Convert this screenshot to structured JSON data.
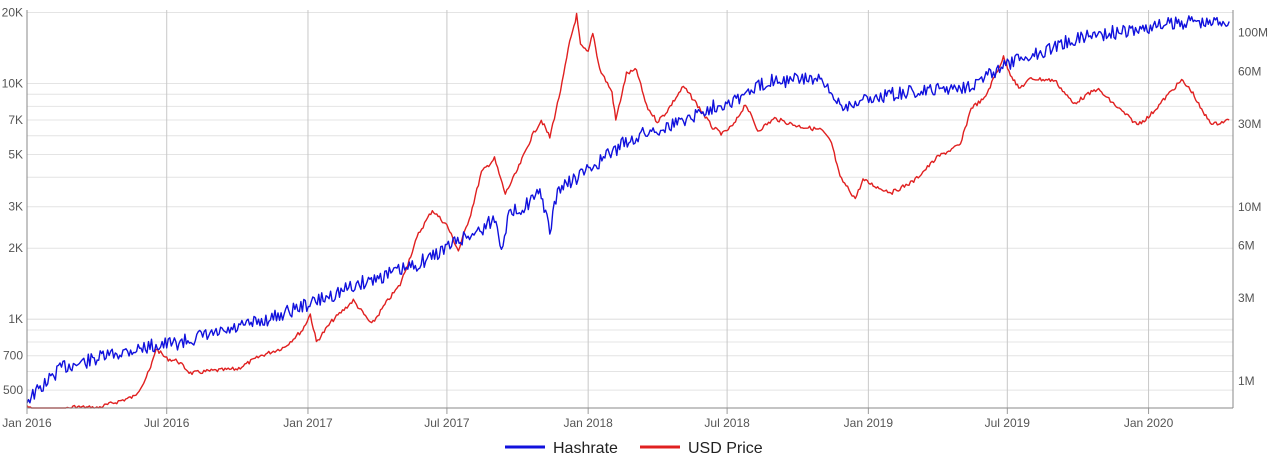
{
  "chart_data": {
    "type": "line",
    "title": "",
    "x_ticks": [
      "Jan 2016",
      "Jul 2016",
      "Jan 2017",
      "Jul 2017",
      "Jan 2018",
      "Jul 2018",
      "Jan 2019",
      "Jul 2019",
      "Jan 2020"
    ],
    "xlim": [
      "2016-01-01",
      "2020-04-20"
    ],
    "y_left": {
      "scale": "log",
      "lim": [
        420,
        20500
      ],
      "tick_labels": [
        "500",
        "700",
        "1K",
        "2K",
        "3K",
        "5K",
        "7K",
        "10K",
        "20K"
      ],
      "tick_values": [
        500,
        700,
        1000,
        2000,
        3000,
        5000,
        7000,
        10000,
        20000
      ]
    },
    "y_right": {
      "scale": "log",
      "lim": [
        700000,
        135000000
      ],
      "tick_labels": [
        "1M",
        "3M",
        "6M",
        "10M",
        "30M",
        "60M",
        "100M"
      ],
      "tick_values": [
        1000000,
        3000000,
        6000000,
        10000000,
        30000000,
        60000000,
        100000000
      ]
    },
    "grid": true,
    "legend": "bottom",
    "series": [
      {
        "name": "USD Price",
        "axis": "left",
        "color": "#e02020",
        "points": [
          [
            "2016-01-01",
            430
          ],
          [
            "2016-01-15",
            390
          ],
          [
            "2016-02-01",
            375
          ],
          [
            "2016-02-15",
            410
          ],
          [
            "2016-03-01",
            425
          ],
          [
            "2016-04-01",
            420
          ],
          [
            "2016-05-01",
            450
          ],
          [
            "2016-05-20",
            470
          ],
          [
            "2016-06-01",
            540
          ],
          [
            "2016-06-10",
            620
          ],
          [
            "2016-06-17",
            750
          ],
          [
            "2016-07-01",
            680
          ],
          [
            "2016-07-15",
            665
          ],
          [
            "2016-08-01",
            590
          ],
          [
            "2016-09-01",
            605
          ],
          [
            "2016-10-01",
            615
          ],
          [
            "2016-11-01",
            700
          ],
          [
            "2016-12-01",
            760
          ],
          [
            "2016-12-25",
            900
          ],
          [
            "2017-01-04",
            1050
          ],
          [
            "2017-01-12",
            800
          ],
          [
            "2017-02-01",
            980
          ],
          [
            "2017-03-01",
            1200
          ],
          [
            "2017-03-25",
            950
          ],
          [
            "2017-04-15",
            1200
          ],
          [
            "2017-05-01",
            1400
          ],
          [
            "2017-05-25",
            2300
          ],
          [
            "2017-06-12",
            2900
          ],
          [
            "2017-07-01",
            2500
          ],
          [
            "2017-07-16",
            1950
          ],
          [
            "2017-08-01",
            2800
          ],
          [
            "2017-08-15",
            4200
          ],
          [
            "2017-09-01",
            4800
          ],
          [
            "2017-09-15",
            3400
          ],
          [
            "2017-10-01",
            4300
          ],
          [
            "2017-10-20",
            6000
          ],
          [
            "2017-11-01",
            7000
          ],
          [
            "2017-11-12",
            5900
          ],
          [
            "2017-11-28",
            10000
          ],
          [
            "2017-12-08",
            15000
          ],
          [
            "2017-12-17",
            19500
          ],
          [
            "2017-12-22",
            14500
          ],
          [
            "2018-01-01",
            13500
          ],
          [
            "2018-01-07",
            16500
          ],
          [
            "2018-01-16",
            11500
          ],
          [
            "2018-02-01",
            9200
          ],
          [
            "2018-02-06",
            7000
          ],
          [
            "2018-02-20",
            11000
          ],
          [
            "2018-03-05",
            11400
          ],
          [
            "2018-03-18",
            8000
          ],
          [
            "2018-04-01",
            6900
          ],
          [
            "2018-04-12",
            7500
          ],
          [
            "2018-05-05",
            9700
          ],
          [
            "2018-05-20",
            8400
          ],
          [
            "2018-06-12",
            6500
          ],
          [
            "2018-06-25",
            6100
          ],
          [
            "2018-07-10",
            6700
          ],
          [
            "2018-07-25",
            8200
          ],
          [
            "2018-08-10",
            6300
          ],
          [
            "2018-09-01",
            7100
          ],
          [
            "2018-10-01",
            6600
          ],
          [
            "2018-11-01",
            6350
          ],
          [
            "2018-11-14",
            5600
          ],
          [
            "2018-11-25",
            4000
          ],
          [
            "2018-12-15",
            3250
          ],
          [
            "2018-12-25",
            3900
          ],
          [
            "2019-01-15",
            3600
          ],
          [
            "2019-02-01",
            3450
          ],
          [
            "2019-03-01",
            3850
          ],
          [
            "2019-04-02",
            4900
          ],
          [
            "2019-05-01",
            5500
          ],
          [
            "2019-05-15",
            7900
          ],
          [
            "2019-06-01",
            8600
          ],
          [
            "2019-06-26",
            12900
          ],
          [
            "2019-07-05",
            11000
          ],
          [
            "2019-07-16",
            9500
          ],
          [
            "2019-08-01",
            10500
          ],
          [
            "2019-09-01",
            10300
          ],
          [
            "2019-09-25",
            8200
          ],
          [
            "2019-10-26",
            9500
          ],
          [
            "2019-11-20",
            8000
          ],
          [
            "2019-12-17",
            6700
          ],
          [
            "2020-01-01",
            7200
          ],
          [
            "2020-02-01",
            9400
          ],
          [
            "2020-02-13",
            10300
          ],
          [
            "2020-02-26",
            9300
          ],
          [
            "2020-03-12",
            7500
          ],
          [
            "2020-03-25",
            6700
          ],
          [
            "2020-04-15",
            7000
          ]
        ]
      },
      {
        "name": "Hashrate",
        "axis": "right",
        "color": "#1111dd",
        "points": [
          [
            "2016-01-01",
            780000
          ],
          [
            "2016-01-20",
            920000
          ],
          [
            "2016-02-15",
            1200000
          ],
          [
            "2016-03-15",
            1280000
          ],
          [
            "2016-04-15",
            1400000
          ],
          [
            "2016-05-15",
            1500000
          ],
          [
            "2016-06-15",
            1600000
          ],
          [
            "2016-07-15",
            1650000
          ],
          [
            "2016-08-15",
            1800000
          ],
          [
            "2016-09-15",
            1900000
          ],
          [
            "2016-10-15",
            2100000
          ],
          [
            "2016-11-15",
            2300000
          ],
          [
            "2016-12-15",
            2600000
          ],
          [
            "2017-01-15",
            2900000
          ],
          [
            "2017-02-15",
            3300000
          ],
          [
            "2017-03-15",
            3700000
          ],
          [
            "2017-04-15",
            4100000
          ],
          [
            "2017-05-15",
            4500000
          ],
          [
            "2017-06-15",
            5300000
          ],
          [
            "2017-07-15",
            6400000
          ],
          [
            "2017-08-15",
            7400000
          ],
          [
            "2017-09-01",
            8600000
          ],
          [
            "2017-09-10",
            6000000
          ],
          [
            "2017-09-20",
            9000000
          ],
          [
            "2017-10-15",
            10500000
          ],
          [
            "2017-11-01",
            12000000
          ],
          [
            "2017-11-12",
            7000000
          ],
          [
            "2017-11-22",
            12500000
          ],
          [
            "2017-12-15",
            14500000
          ],
          [
            "2018-01-15",
            18000000
          ],
          [
            "2018-02-15",
            23000000
          ],
          [
            "2018-03-15",
            26500000
          ],
          [
            "2018-04-15",
            29000000
          ],
          [
            "2018-05-15",
            33000000
          ],
          [
            "2018-06-15",
            38000000
          ],
          [
            "2018-07-15",
            42000000
          ],
          [
            "2018-08-15",
            50000000
          ],
          [
            "2018-09-01",
            55000000
          ],
          [
            "2018-09-15",
            53000000
          ],
          [
            "2018-10-15",
            55000000
          ],
          [
            "2018-11-01",
            52000000
          ],
          [
            "2018-11-15",
            43000000
          ],
          [
            "2018-12-01",
            38000000
          ],
          [
            "2018-12-15",
            40000000
          ],
          [
            "2019-01-15",
            43000000
          ],
          [
            "2019-02-15",
            45000000
          ],
          [
            "2019-03-15",
            46000000
          ],
          [
            "2019-04-15",
            48000000
          ],
          [
            "2019-05-15",
            50000000
          ],
          [
            "2019-06-15",
            60000000
          ],
          [
            "2019-07-15",
            70000000
          ],
          [
            "2019-08-15",
            78000000
          ],
          [
            "2019-09-15",
            88000000
          ],
          [
            "2019-10-15",
            97000000
          ],
          [
            "2019-11-15",
            100000000
          ],
          [
            "2019-12-15",
            103000000
          ],
          [
            "2020-01-15",
            110000000
          ],
          [
            "2020-02-15",
            115000000
          ],
          [
            "2020-03-01",
            118000000
          ],
          [
            "2020-03-15",
            112000000
          ],
          [
            "2020-04-01",
            118000000
          ],
          [
            "2020-04-15",
            116000000
          ]
        ]
      }
    ]
  }
}
